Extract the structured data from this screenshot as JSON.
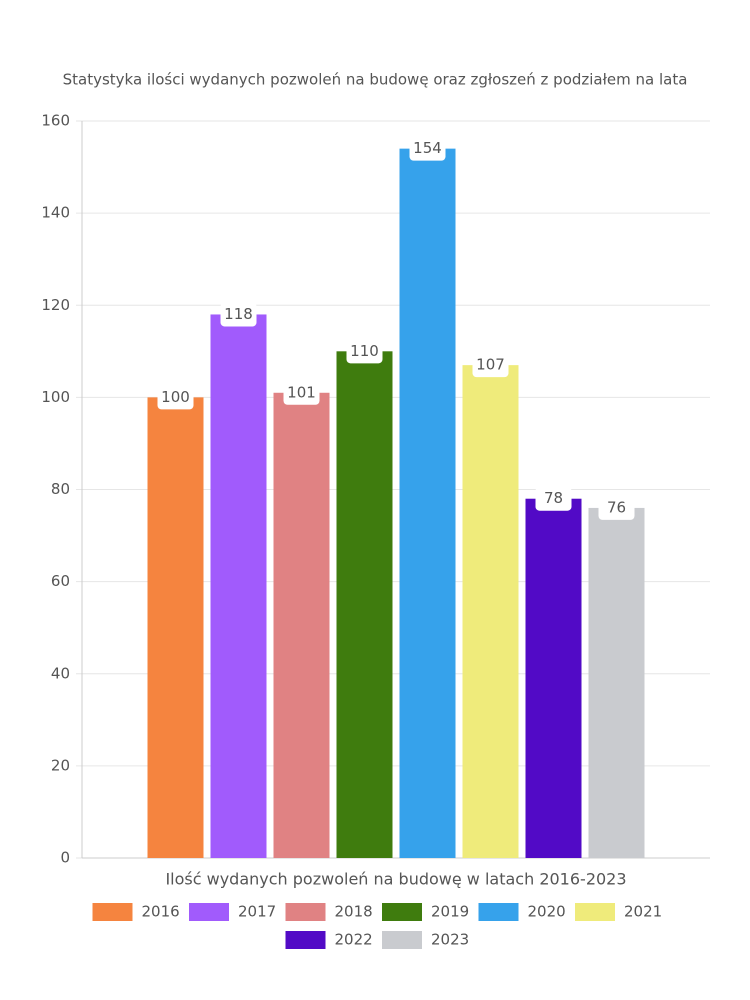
{
  "chart_data": {
    "type": "bar",
    "title": "Statystyka ilości wydanych pozwoleń na budowę oraz zgłoszeń z podziałem na lata",
    "categories": [
      "Ilość wydanych pozwoleń na budowę w latach 2016-2023"
    ],
    "series": [
      {
        "name": "2016",
        "color": "#f5843f",
        "values": [
          100
        ]
      },
      {
        "name": "2017",
        "color": "#a15bfc",
        "values": [
          118
        ]
      },
      {
        "name": "2018",
        "color": "#e08283",
        "values": [
          101
        ]
      },
      {
        "name": "2019",
        "color": "#3f7c0e",
        "values": [
          110
        ]
      },
      {
        "name": "2020",
        "color": "#36a2eb",
        "values": [
          154
        ]
      },
      {
        "name": "2021",
        "color": "#efeb7b",
        "values": [
          107
        ]
      },
      {
        "name": "2022",
        "color": "#520ac6",
        "values": [
          78
        ]
      },
      {
        "name": "2023",
        "color": "#c9cbcf",
        "values": [
          76
        ]
      }
    ],
    "ylim": [
      0,
      160
    ],
    "yticks": [
      0,
      20,
      40,
      60,
      80,
      100,
      120,
      140,
      160
    ],
    "grid": true,
    "legend": "bottom"
  }
}
